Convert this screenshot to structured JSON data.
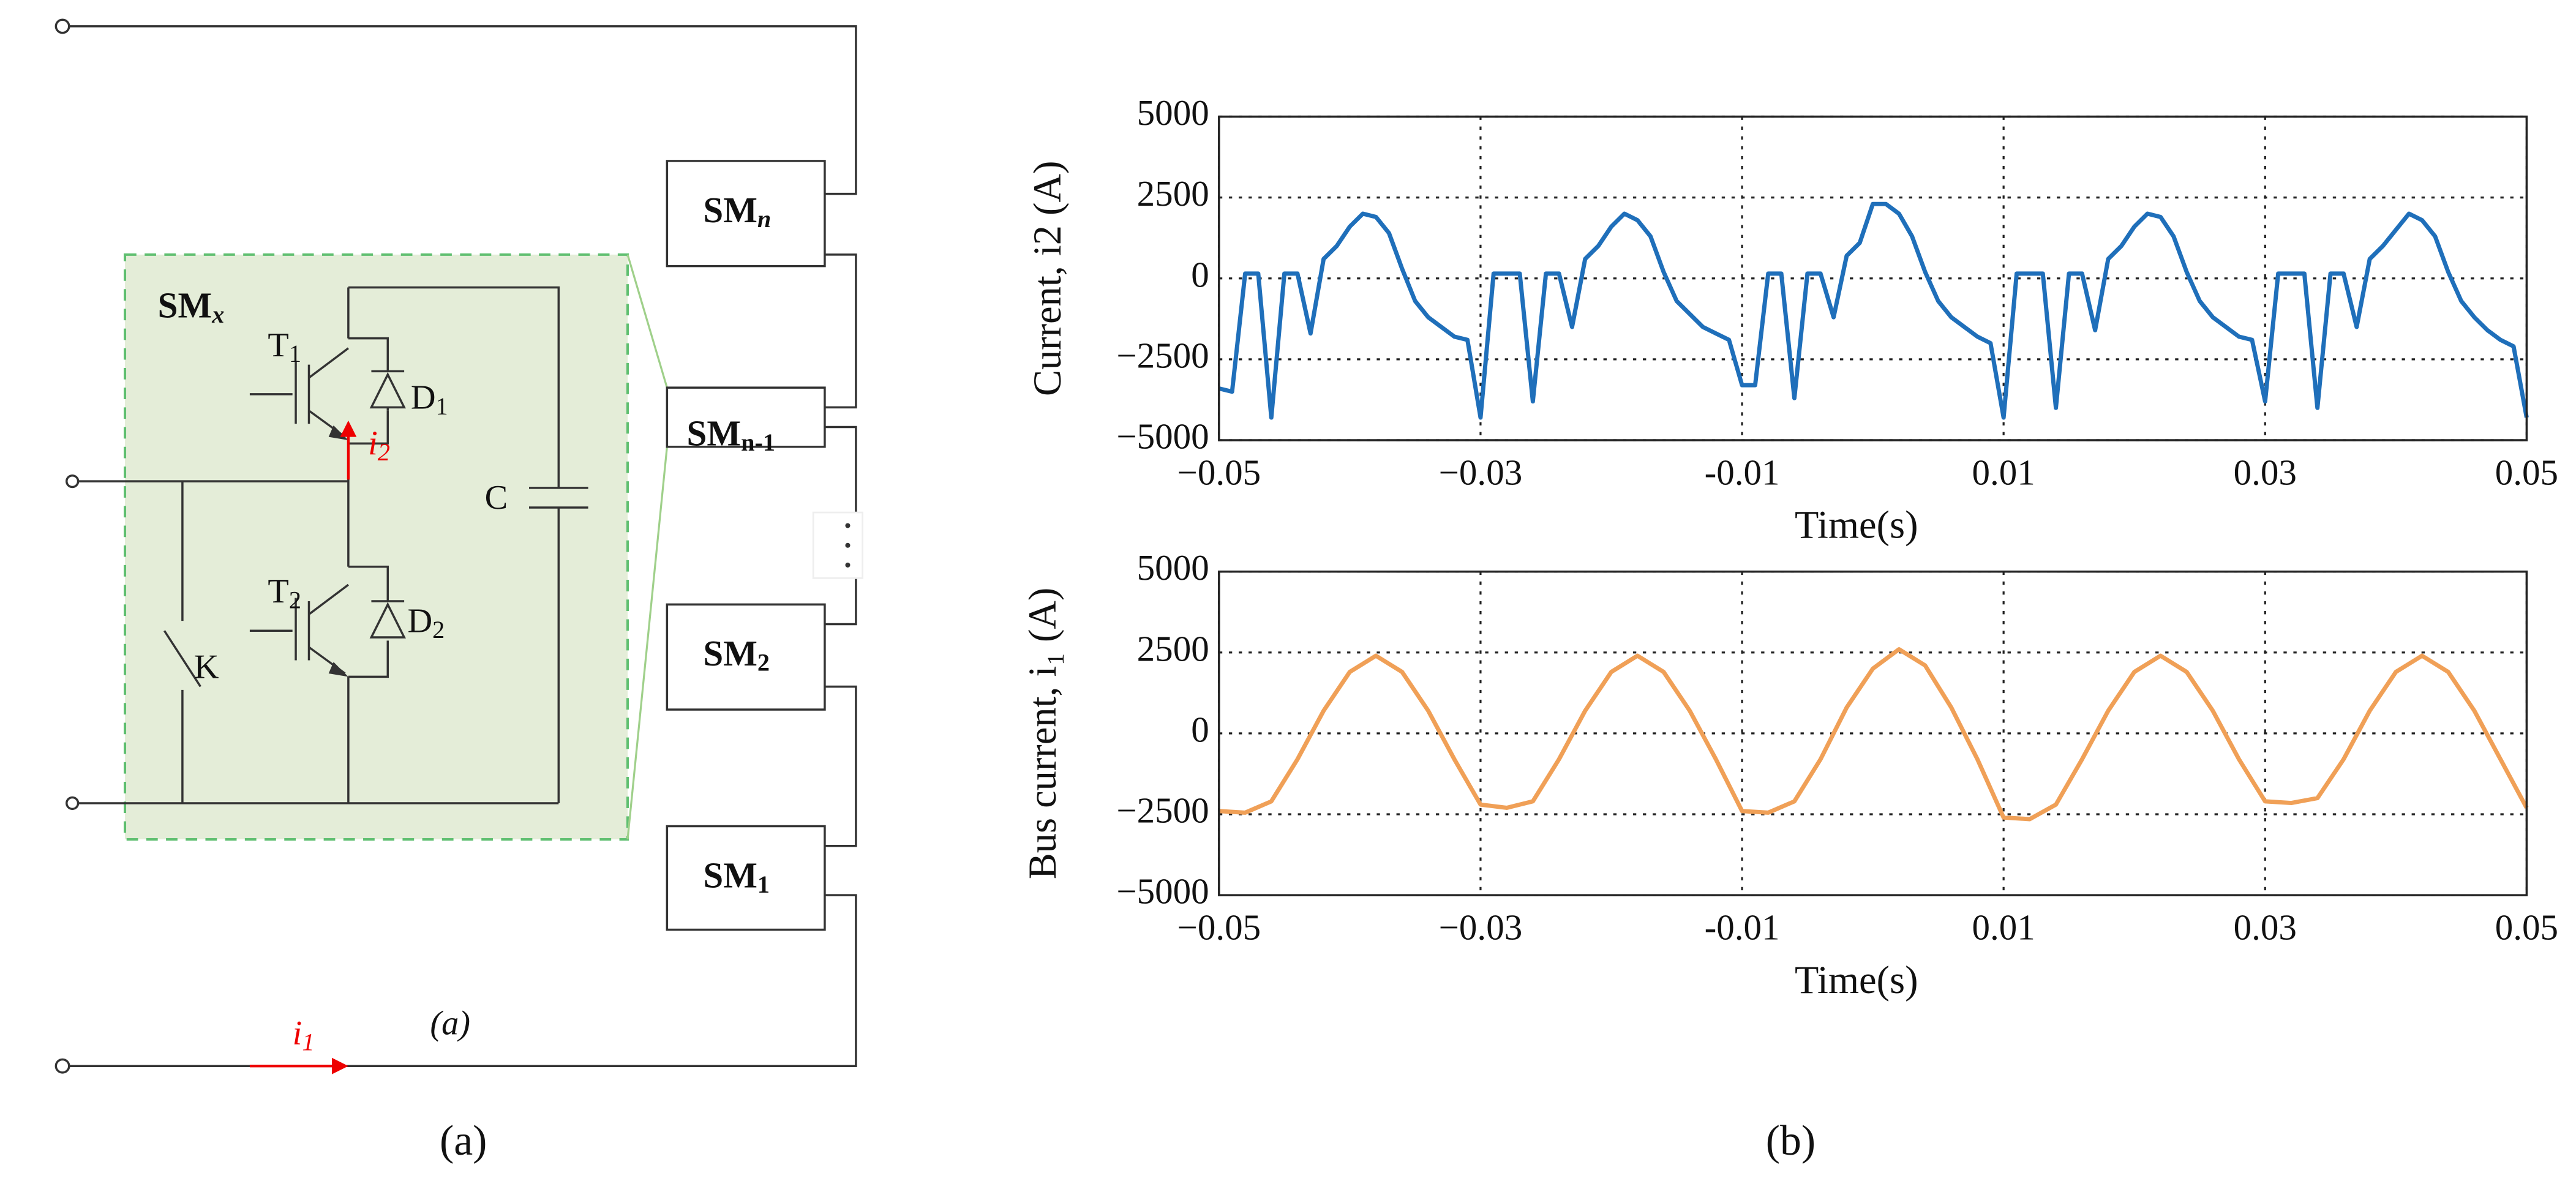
{
  "diagram": {
    "modules": [
      {
        "name": "SM",
        "sub": "n"
      },
      {
        "name": "SM",
        "sub": "n-1"
      },
      {
        "name": "SM",
        "sub": "2"
      },
      {
        "name": "SM",
        "sub": "1"
      }
    ],
    "submodule": {
      "name": "SM",
      "sub": "x"
    },
    "components": [
      {
        "name": "T",
        "sub": "1"
      },
      {
        "name": "D",
        "sub": "1"
      },
      {
        "name": "T",
        "sub": "2"
      },
      {
        "name": "D",
        "sub": "2"
      },
      {
        "name": "K"
      },
      {
        "name": "C"
      }
    ],
    "currents": [
      {
        "name": "i",
        "sub": "2"
      },
      {
        "name": "i",
        "sub": "1"
      }
    ],
    "inner_label": "(a)"
  },
  "panel_labels": [
    "(a)",
    "(b)"
  ],
  "chart_data": [
    {
      "type": "line",
      "ylabel": "Current, i2 (A)",
      "xlabel": "Time(s)",
      "xlim": [
        -0.05,
        0.05
      ],
      "ylim": [
        -5000,
        5000
      ],
      "grid": true,
      "xticks": [
        {
          "value": -0.05,
          "label": "−0.05"
        },
        {
          "value": -0.03,
          "label": "−0.03"
        },
        -0.01,
        0.01,
        0.03,
        0.05
      ],
      "yticks": [
        {
          "value": -5000,
          "label": "−5000"
        },
        {
          "value": -2500,
          "label": "−2500"
        },
        0,
        2500,
        5000
      ],
      "x": [
        -0.05,
        -0.049,
        -0.048,
        -0.047,
        -0.046,
        -0.045,
        -0.044,
        -0.043,
        -0.042,
        -0.041,
        -0.04,
        -0.039,
        -0.038,
        -0.037,
        -0.036,
        -0.035,
        -0.034,
        -0.033,
        -0.032,
        -0.031,
        -0.03,
        -0.029,
        -0.028,
        -0.027,
        -0.026,
        -0.025,
        -0.024,
        -0.023,
        -0.022,
        -0.021,
        -0.02,
        -0.019,
        -0.018,
        -0.017,
        -0.016,
        -0.015,
        -0.014,
        -0.013,
        -0.012,
        -0.011,
        -0.01,
        -0.009,
        -0.008,
        -0.007,
        -0.006,
        -0.005,
        -0.004,
        -0.003,
        -0.002,
        -0.001,
        0,
        0.001,
        0.002,
        0.003,
        0.004,
        0.005,
        0.006,
        0.007,
        0.008,
        0.009,
        0.01,
        0.011,
        0.012,
        0.013,
        0.014,
        0.015,
        0.016,
        0.017,
        0.018,
        0.019,
        0.02,
        0.021,
        0.022,
        0.023,
        0.024,
        0.025,
        0.026,
        0.027,
        0.028,
        0.029,
        0.03,
        0.031,
        0.032,
        0.033,
        0.034,
        0.035,
        0.036,
        0.037,
        0.038,
        0.039,
        0.04,
        0.041,
        0.042,
        0.043,
        0.044,
        0.045,
        0.046,
        0.047,
        0.048,
        0.049,
        0.05
      ],
      "series": [
        {
          "name": "i2",
          "color": "#1f6fba",
          "values": [
            -3400,
            -3500,
            150,
            150,
            -4300,
            150,
            150,
            -1700,
            600,
            1000,
            1600,
            2000,
            1900,
            1400,
            300,
            -700,
            -1200,
            -1500,
            -1800,
            -1900,
            -4300,
            150,
            150,
            150,
            -3800,
            150,
            150,
            -1500,
            600,
            1000,
            1600,
            2000,
            1800,
            1300,
            200,
            -700,
            -1100,
            -1500,
            -1700,
            -1900,
            -3300,
            -3300,
            150,
            150,
            -3700,
            150,
            150,
            -1200,
            700,
            1100,
            2300,
            2300,
            2000,
            1300,
            200,
            -700,
            -1200,
            -1500,
            -1800,
            -2000,
            -4300,
            150,
            150,
            150,
            -4000,
            150,
            150,
            -1600,
            600,
            1000,
            1600,
            2000,
            1900,
            1300,
            200,
            -700,
            -1200,
            -1500,
            -1800,
            -1900,
            -3800,
            150,
            150,
            150,
            -4000,
            150,
            150,
            -1500,
            600,
            1000,
            1500,
            2000,
            1800,
            1300,
            200,
            -700,
            -1200,
            -1600,
            -1900,
            -2100,
            -4300
          ]
        }
      ]
    },
    {
      "type": "line",
      "ylabel": "Bus current, i₁ (A)",
      "xlabel": "Time(s)",
      "xlim": [
        -0.05,
        0.05
      ],
      "ylim": [
        -5000,
        5000
      ],
      "grid": true,
      "xticks": [
        {
          "value": -0.05,
          "label": "−0.05"
        },
        {
          "value": -0.03,
          "label": "−0.03"
        },
        -0.01,
        0.01,
        0.03,
        0.05
      ],
      "yticks": [
        {
          "value": -5000,
          "label": "−5000"
        },
        {
          "value": -2500,
          "label": "−2500"
        },
        0,
        2500,
        5000
      ],
      "x": [
        -0.05,
        -0.048,
        -0.046,
        -0.044,
        -0.042,
        -0.04,
        -0.038,
        -0.036,
        -0.034,
        -0.032,
        -0.03,
        -0.028,
        -0.026,
        -0.024,
        -0.022,
        -0.02,
        -0.018,
        -0.016,
        -0.014,
        -0.012,
        -0.01,
        -0.008,
        -0.006,
        -0.004,
        -0.002,
        0,
        0.002,
        0.004,
        0.006,
        0.008,
        0.01,
        0.012,
        0.014,
        0.016,
        0.018,
        0.02,
        0.022,
        0.024,
        0.026,
        0.028,
        0.03,
        0.032,
        0.034,
        0.036,
        0.038,
        0.04,
        0.042,
        0.044,
        0.046,
        0.048,
        0.05
      ],
      "series": [
        {
          "name": "i1",
          "color": "#f0a057",
          "values": [
            -2400,
            -2450,
            -2100,
            -800,
            700,
            1900,
            2400,
            1900,
            700,
            -800,
            -2200,
            -2300,
            -2100,
            -800,
            700,
            1900,
            2400,
            1900,
            700,
            -800,
            -2400,
            -2450,
            -2100,
            -800,
            800,
            2000,
            2600,
            2100,
            800,
            -800,
            -2600,
            -2650,
            -2200,
            -800,
            700,
            1900,
            2400,
            1900,
            700,
            -800,
            -2100,
            -2150,
            -2000,
            -800,
            700,
            1900,
            2400,
            1900,
            700,
            -800,
            -2300
          ]
        }
      ]
    }
  ]
}
